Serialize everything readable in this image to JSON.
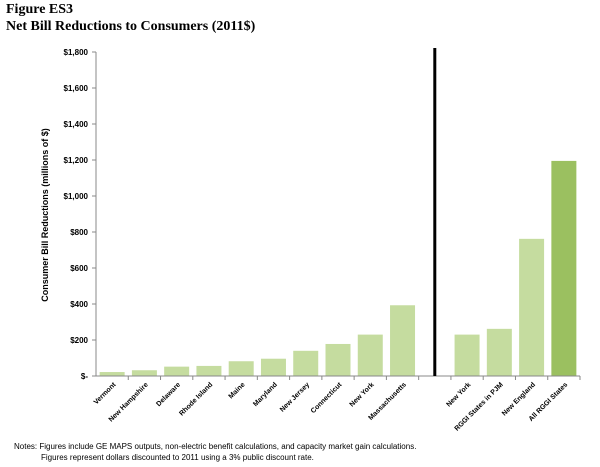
{
  "figure": {
    "label": "Figure ES3",
    "title": "Net Bill Reductions to Consumers (2011$)"
  },
  "chart_data": {
    "type": "bar",
    "title": "Net Bill Reductions to Consumers (2011$)",
    "ylabel": "Consumer Bill Reductions (millions of $)",
    "xlabel": "",
    "ylim": [
      0,
      1800
    ],
    "ytick_values": [
      0,
      200,
      400,
      600,
      800,
      1000,
      1200,
      1400,
      1600,
      1800
    ],
    "ytick_labels": [
      "$-",
      "$200",
      "$400",
      "$600",
      "$800",
      "$1,000",
      "$1,200",
      "$1,400",
      "$1,600",
      "$1,800"
    ],
    "grid": false,
    "legend": "none",
    "groups": [
      {
        "categories": [
          "Vermont",
          "New Hampshire",
          "Delaware",
          "Rhode Island",
          "Maine",
          "Maryland",
          "New Jersey",
          "Connecticut",
          "New York",
          "Massachusetts"
        ],
        "values": [
          22,
          32,
          52,
          56,
          82,
          96,
          140,
          178,
          230,
          393
        ]
      },
      {
        "categories": [
          "New York",
          "RGGI States in PJM",
          "New England",
          "All RGGI States"
        ],
        "values": [
          230,
          262,
          762,
          1195
        ]
      }
    ],
    "colors": {
      "bar": "#c5dc9f",
      "bar_highlight": "#9bc060",
      "divider": "#000000",
      "axis": "#888888"
    }
  },
  "notes": {
    "line1": "Notes: Figures include GE MAPS outputs, non-electric benefit calculations, and capacity market gain calculations.",
    "line2": "Figures represent dollars discounted to 2011 using a 3% public discount rate."
  }
}
